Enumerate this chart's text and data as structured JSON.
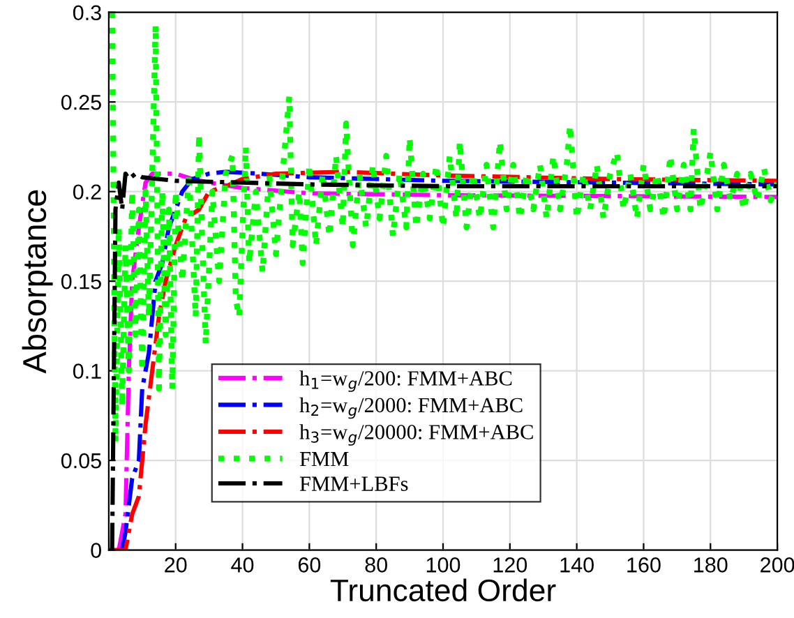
{
  "chart_data": {
    "type": "line",
    "xlabel": "Truncated Order",
    "ylabel": "Absorptance",
    "xlim": [
      0,
      200
    ],
    "ylim": [
      0,
      0.3
    ],
    "xticks": [
      20,
      40,
      60,
      80,
      100,
      120,
      140,
      160,
      180,
      200
    ],
    "yticks": [
      0,
      0.05,
      0.1,
      0.15,
      0.2,
      0.25,
      0.3
    ],
    "grid": true,
    "legend": "bottom",
    "marker": "none",
    "series": [
      {
        "name": "h$_{1}$=w$_{g}$/200: FMM+ABC",
        "color": "#ff00ff",
        "line_style": "dashdot",
        "x": [
          3,
          5,
          6,
          7,
          9,
          11,
          13,
          20,
          25,
          30,
          40,
          60,
          100,
          200
        ],
        "values": [
          0,
          0.02,
          0.1,
          0.15,
          0.18,
          0.205,
          0.21,
          0.21,
          0.207,
          0.205,
          0.202,
          0.199,
          0.198,
          0.197
        ]
      },
      {
        "name": "h$_{2}$=w$_{g}$/2000: FMM+ABC",
        "color": "#0000ff",
        "line_style": "dashdot",
        "x": [
          4,
          5,
          7,
          9,
          10,
          12,
          14,
          16,
          18,
          20,
          22,
          25,
          30,
          35,
          45,
          60,
          100,
          200
        ],
        "values": [
          0,
          0.01,
          0.04,
          0.05,
          0.09,
          0.11,
          0.15,
          0.16,
          0.18,
          0.19,
          0.2,
          0.207,
          0.21,
          0.211,
          0.21,
          0.208,
          0.206,
          0.204
        ]
      },
      {
        "name": "h$_{3}$=w$_{g}$/20000: FMM+ABC",
        "color": "#ff0000",
        "line_style": "dashdot",
        "x": [
          0,
          5,
          7,
          9,
          11,
          13,
          15,
          17,
          20,
          23,
          27,
          30,
          35,
          40,
          50,
          70,
          100,
          150,
          200
        ],
        "values": [
          0,
          0,
          0.02,
          0.03,
          0.07,
          0.1,
          0.13,
          0.15,
          0.17,
          0.185,
          0.19,
          0.2,
          0.203,
          0.207,
          0.21,
          0.211,
          0.209,
          0.207,
          0.206
        ]
      },
      {
        "name": "FMM",
        "color": "#00ff00",
        "line_style": "dotted",
        "x": [
          1,
          2,
          3,
          4,
          5,
          6,
          7,
          8,
          9,
          10,
          11,
          12,
          13,
          14,
          15,
          16,
          17,
          18,
          19,
          20,
          22,
          24,
          26,
          27,
          28,
          29,
          31,
          33,
          35,
          37,
          38,
          39,
          41,
          42,
          44,
          46,
          48,
          50,
          52,
          54,
          55,
          57,
          58,
          60,
          62,
          64,
          66,
          68,
          70,
          71,
          73,
          75,
          77,
          79,
          81,
          83,
          85,
          87,
          89,
          90,
          92,
          94,
          96,
          98,
          100,
          102,
          104,
          105,
          107,
          109,
          111,
          113,
          115,
          117,
          119,
          121,
          123,
          125,
          127,
          129,
          131,
          133,
          135,
          137,
          138,
          140,
          142,
          144,
          146,
          148,
          150,
          152,
          154,
          156,
          158,
          160,
          162,
          164,
          166,
          168,
          170,
          172,
          174,
          175,
          177,
          179,
          180,
          182,
          184,
          186,
          188,
          190,
          192,
          194,
          196,
          198,
          200
        ],
        "values": [
          0.3,
          0.06,
          0.18,
          0.08,
          0.17,
          0.1,
          0.2,
          0.12,
          0.19,
          0.1,
          0.2,
          0.13,
          0.21,
          0.293,
          0.09,
          0.2,
          0.12,
          0.19,
          0.09,
          0.2,
          0.15,
          0.21,
          0.13,
          0.232,
          0.17,
          0.115,
          0.2,
          0.15,
          0.21,
          0.22,
          0.14,
          0.13,
          0.225,
          0.16,
          0.2,
          0.155,
          0.21,
          0.165,
          0.21,
          0.253,
          0.17,
          0.2,
          0.16,
          0.215,
          0.17,
          0.21,
          0.175,
          0.22,
          0.18,
          0.238,
          0.17,
          0.21,
          0.18,
          0.215,
          0.185,
          0.22,
          0.175,
          0.21,
          0.18,
          0.23,
          0.18,
          0.21,
          0.185,
          0.215,
          0.18,
          0.22,
          0.185,
          0.228,
          0.18,
          0.21,
          0.185,
          0.215,
          0.18,
          0.228,
          0.19,
          0.215,
          0.185,
          0.21,
          0.19,
          0.215,
          0.185,
          0.22,
          0.19,
          0.215,
          0.237,
          0.185,
          0.21,
          0.19,
          0.215,
          0.185,
          0.21,
          0.222,
          0.19,
          0.21,
          0.185,
          0.215,
          0.19,
          0.21,
          0.185,
          0.22,
          0.19,
          0.215,
          0.19,
          0.235,
          0.19,
          0.21,
          0.222,
          0.19,
          0.215,
          0.195,
          0.21,
          0.19,
          0.21,
          0.195,
          0.213,
          0.195,
          0.205
        ]
      },
      {
        "name": "FMM+LBFs",
        "color": "#000000",
        "line_style": "dashdot",
        "x": [
          1,
          2,
          3,
          4,
          5,
          6,
          8,
          10,
          15,
          20,
          40,
          60,
          100,
          200
        ],
        "values": [
          0,
          0.19,
          0.205,
          0.19,
          0.21,
          0.207,
          0.21,
          0.208,
          0.207,
          0.206,
          0.205,
          0.204,
          0.203,
          0.203
        ]
      }
    ]
  }
}
